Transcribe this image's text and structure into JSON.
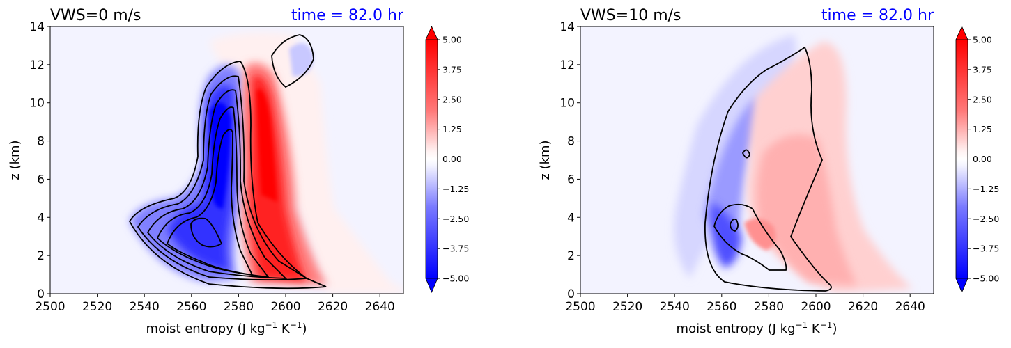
{
  "chart_data": [
    {
      "type": "contourf",
      "title": "VWS=0 m/s",
      "title_right": "time = 82.0 hr",
      "xlabel": "moist entropy (J kg",
      "xlabel_sup1": "−1",
      "xlabel_mid": " K",
      "xlabel_sup2": "−1",
      "xlabel_end": ")",
      "ylabel": "z (km)",
      "xlim": [
        2500,
        2650
      ],
      "ylim": [
        0,
        14
      ],
      "xticks": [
        "2500",
        "2520",
        "2540",
        "2560",
        "2580",
        "2600",
        "2620",
        "2640"
      ],
      "yticks": [
        "0",
        "2",
        "4",
        "6",
        "8",
        "10",
        "12",
        "14"
      ],
      "colorbar": {
        "range": [
          -5.0,
          5.0
        ],
        "ticks": [
          "5.00",
          "3.75",
          "2.50",
          "1.25",
          "0.00",
          "−1.25",
          "−2.50",
          "−3.75",
          "−5.00"
        ],
        "cmap": "bwr",
        "extend": "both"
      }
    },
    {
      "type": "contourf",
      "title": "VWS=10 m/s",
      "title_right": "time = 82.0 hr",
      "xlabel": "moist entropy (J kg",
      "xlabel_sup1": "−1",
      "xlabel_mid": " K",
      "xlabel_sup2": "−1",
      "xlabel_end": ")",
      "ylabel": "z (km)",
      "xlim": [
        2500,
        2650
      ],
      "ylim": [
        0,
        14
      ],
      "xticks": [
        "2500",
        "2520",
        "2540",
        "2560",
        "2580",
        "2600",
        "2620",
        "2640"
      ],
      "yticks": [
        "0",
        "2",
        "4",
        "6",
        "8",
        "10",
        "12",
        "14"
      ],
      "colorbar": {
        "range": [
          -5.0,
          5.0
        ],
        "ticks": [
          "5.00",
          "3.75",
          "2.50",
          "1.25",
          "0.00",
          "−1.25",
          "−2.50",
          "−3.75",
          "−5.00"
        ],
        "cmap": "bwr",
        "extend": "both"
      }
    }
  ]
}
